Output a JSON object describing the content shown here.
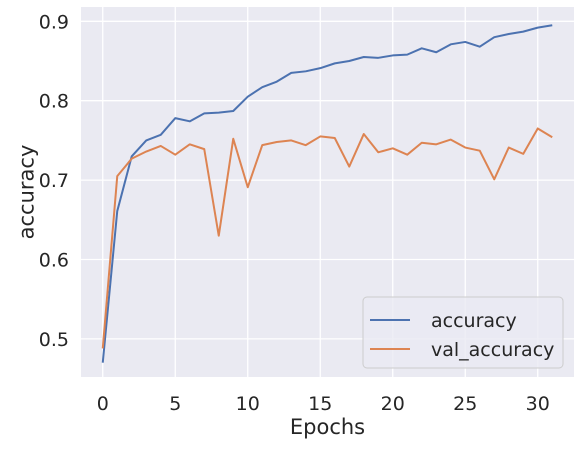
{
  "chart_data": {
    "type": "line",
    "title": "",
    "xlabel": "Epochs",
    "ylabel": "accuracy",
    "xlim": [
      -1.5,
      32.5
    ],
    "ylim": [
      0.452,
      0.918
    ],
    "xticks": [
      0,
      5,
      10,
      15,
      20,
      25,
      30
    ],
    "yticks": [
      0.5,
      0.6,
      0.7,
      0.8,
      0.9
    ],
    "grid": true,
    "legend_position": "lower-right",
    "background": "#eaeaf2",
    "x": [
      0,
      1,
      2,
      3,
      4,
      5,
      6,
      7,
      8,
      9,
      10,
      11,
      12,
      13,
      14,
      15,
      16,
      17,
      18,
      19,
      20,
      21,
      22,
      23,
      24,
      25,
      26,
      27,
      28,
      29,
      30,
      31
    ],
    "series": [
      {
        "name": "accuracy",
        "color": "#4c72b0",
        "values": [
          0.47,
          0.661,
          0.73,
          0.75,
          0.757,
          0.778,
          0.774,
          0.784,
          0.785,
          0.787,
          0.805,
          0.817,
          0.824,
          0.835,
          0.837,
          0.841,
          0.847,
          0.85,
          0.855,
          0.854,
          0.857,
          0.858,
          0.866,
          0.861,
          0.871,
          0.874,
          0.868,
          0.88,
          0.884,
          0.887,
          0.892,
          0.895
        ]
      },
      {
        "name": "val_accuracy",
        "color": "#dd8452",
        "values": [
          0.488,
          0.705,
          0.727,
          0.736,
          0.743,
          0.732,
          0.745,
          0.739,
          0.63,
          0.752,
          0.691,
          0.744,
          0.748,
          0.75,
          0.744,
          0.755,
          0.753,
          0.717,
          0.758,
          0.735,
          0.74,
          0.732,
          0.747,
          0.745,
          0.751,
          0.741,
          0.737,
          0.701,
          0.741,
          0.733,
          0.765,
          0.754
        ]
      }
    ]
  }
}
